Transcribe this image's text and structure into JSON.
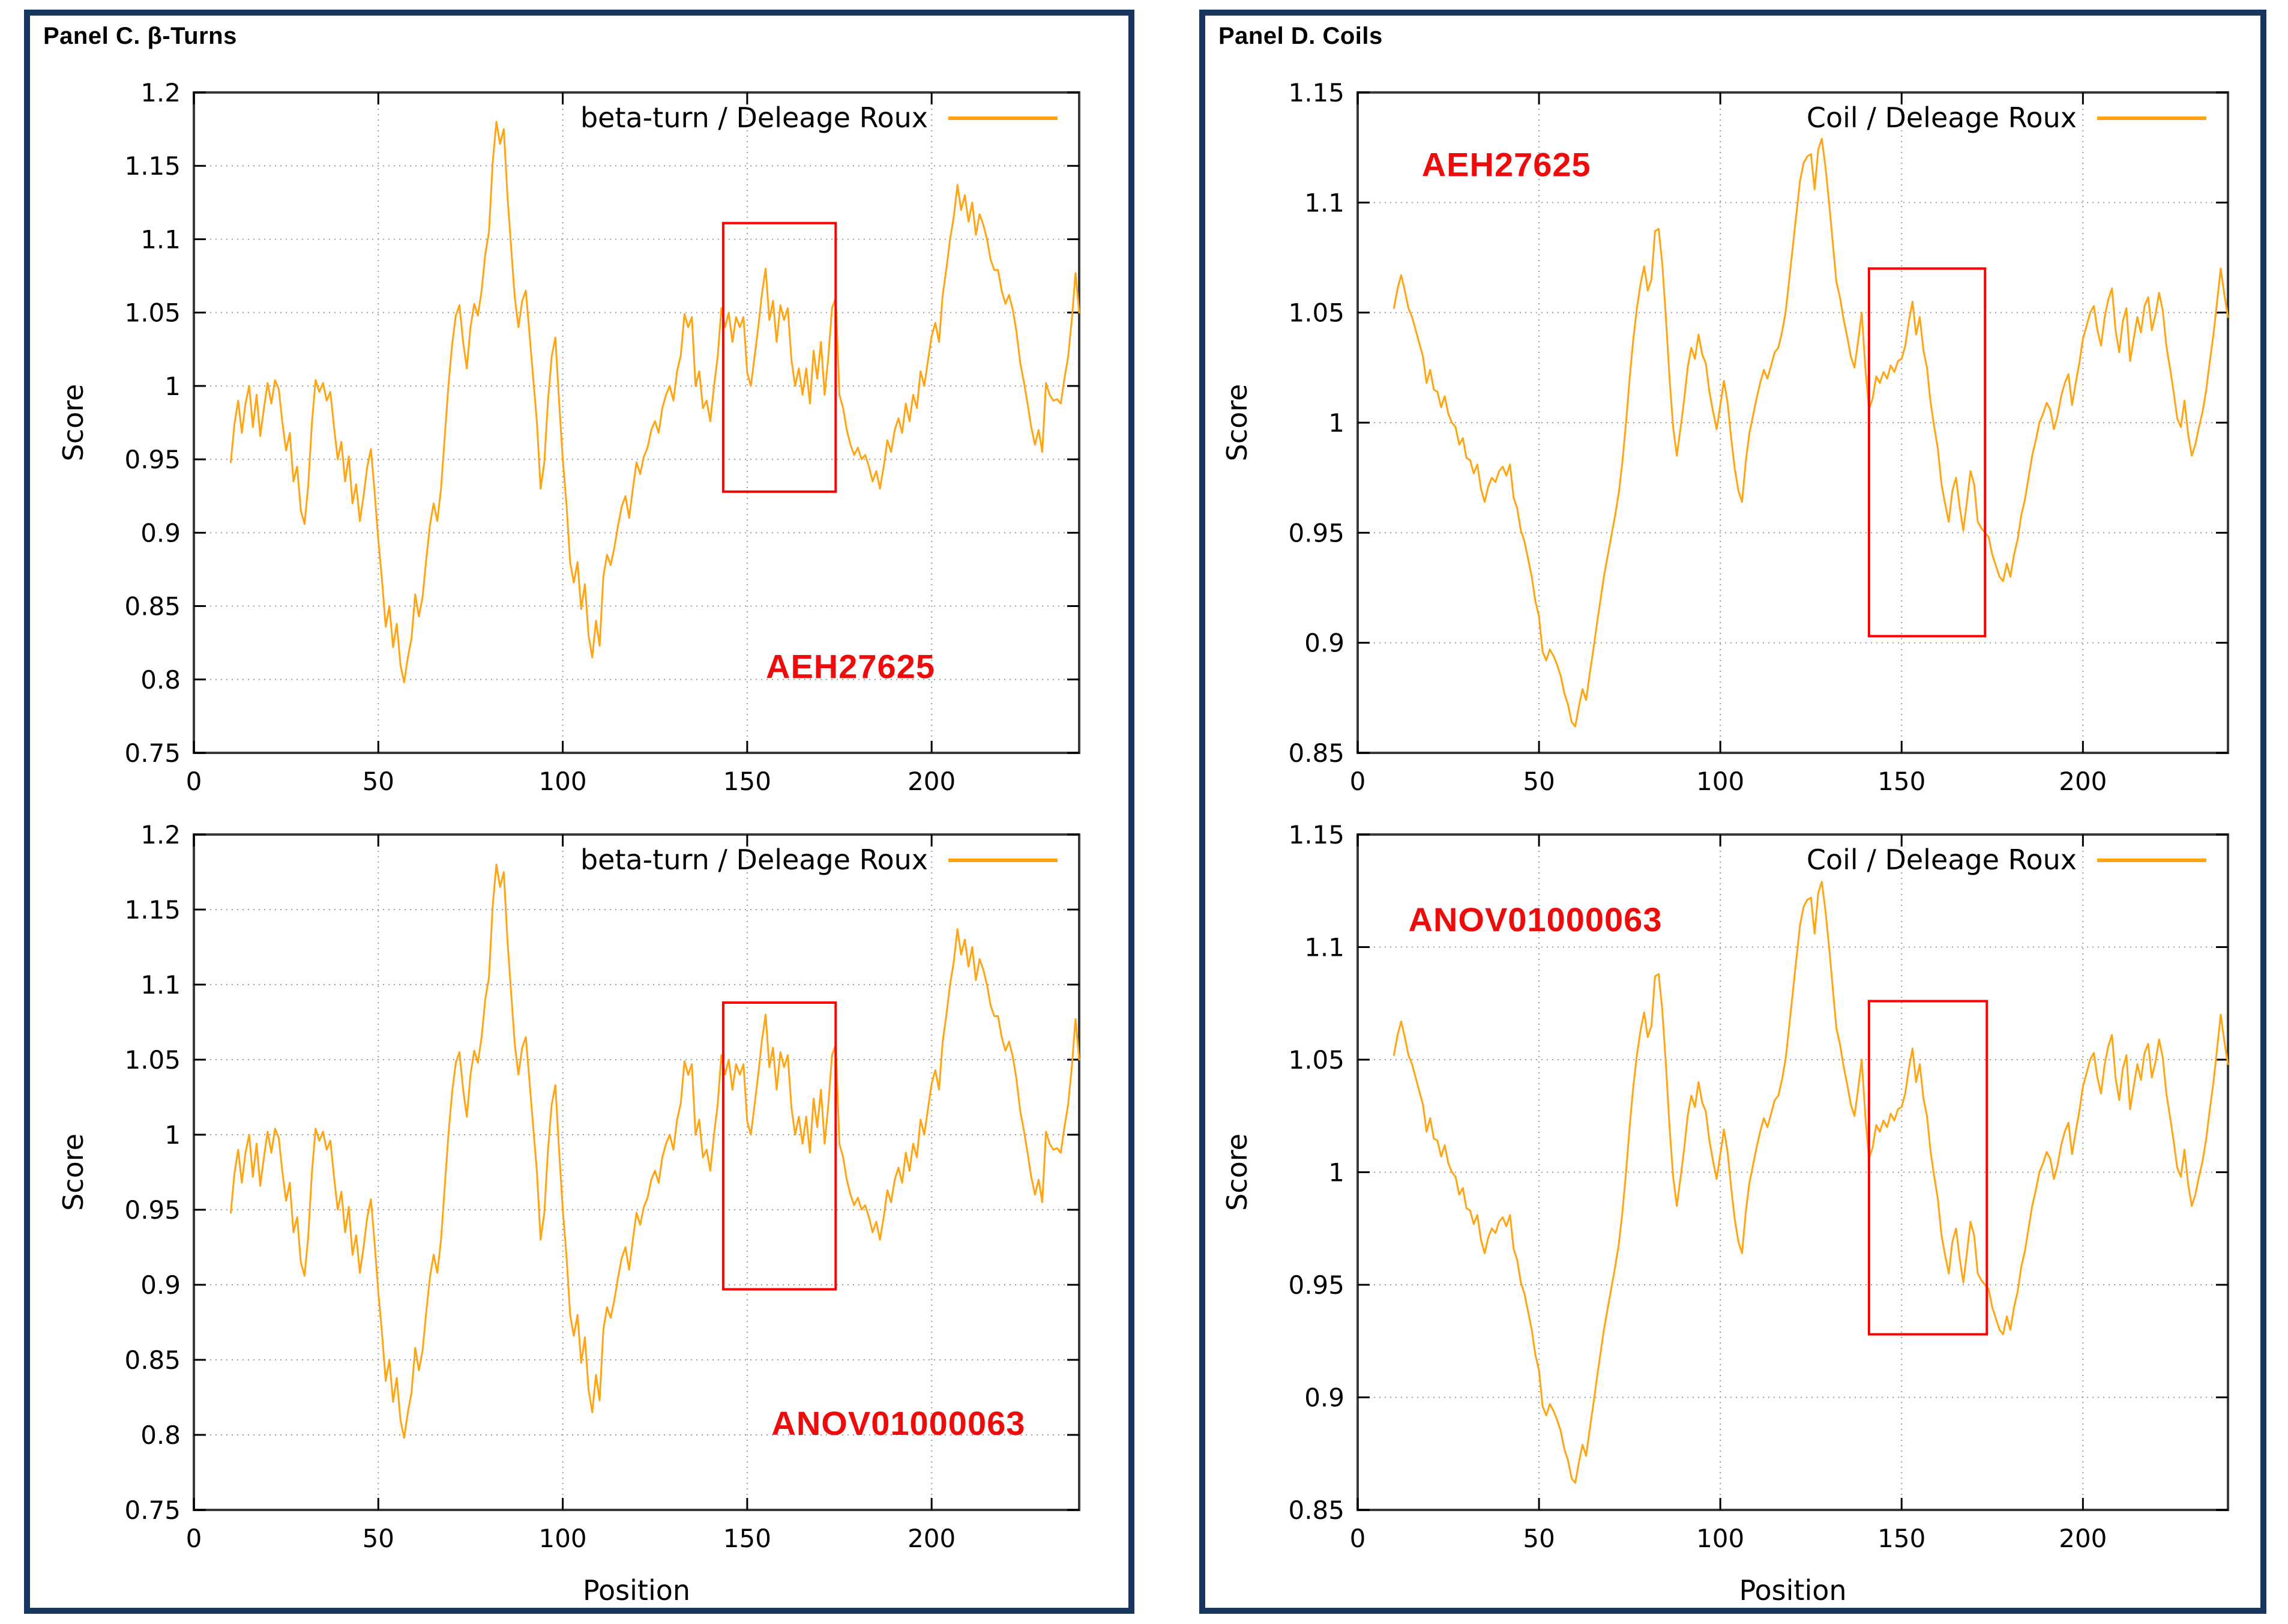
{
  "colors": {
    "series_line": "#ffa513",
    "highlight_red": "#ff0000",
    "annotation_red": "#ee0b0b",
    "panel_border": "#17365d",
    "grid": "#9c9c9c",
    "background": "#ffffff"
  },
  "chart_data": [
    {
      "type": "line",
      "panel_title": "Panel C. β-Turns",
      "legend": "beta-turn / Deleage  Roux",
      "xlabel": "Position",
      "ylabel": "Score",
      "xlim": [
        0,
        240
      ],
      "ylim": [
        0.75,
        1.2
      ],
      "xticks": [
        0,
        50,
        100,
        150,
        200
      ],
      "yticks": [
        0.75,
        0.8,
        0.85,
        0.9,
        0.95,
        1,
        1.05,
        1.1,
        1.15,
        1.2
      ],
      "grid": true,
      "legend_position": "top-right",
      "line_color": "#ffa513",
      "x": [
        10,
        11,
        12,
        13,
        14,
        15,
        16,
        17,
        18,
        19,
        20,
        21,
        22,
        23,
        24,
        25,
        26,
        27,
        28,
        29,
        30,
        31,
        32,
        33,
        34,
        35,
        36,
        37,
        38,
        39,
        40,
        41,
        42,
        43,
        44,
        45,
        46,
        47,
        48,
        49,
        50,
        51,
        52,
        53,
        54,
        55,
        56,
        57,
        58,
        59,
        60,
        61,
        62,
        63,
        64,
        65,
        66,
        67,
        68,
        69,
        70,
        71,
        72,
        73,
        74,
        75,
        76,
        77,
        78,
        79,
        80,
        81,
        82,
        83,
        84,
        85,
        86,
        87,
        88,
        89,
        90,
        91,
        92,
        93,
        94,
        95,
        96,
        97,
        98,
        99,
        100,
        101,
        102,
        103,
        104,
        105,
        106,
        107,
        108,
        109,
        110,
        111,
        112,
        113,
        114,
        115,
        116,
        117,
        118,
        119,
        120,
        121,
        122,
        123,
        124,
        125,
        126,
        127,
        128,
        129,
        130,
        131,
        132,
        133,
        134,
        135,
        136,
        137,
        138,
        139,
        140,
        141,
        142,
        143,
        144,
        145,
        146,
        147,
        148,
        149,
        150,
        151,
        152,
        153,
        154,
        155,
        156,
        157,
        158,
        159,
        160,
        161,
        162,
        163,
        164,
        165,
        166,
        167,
        168,
        169,
        170,
        171,
        172,
        173,
        174,
        175,
        176,
        177,
        178,
        179,
        180,
        181,
        182,
        183,
        184,
        185,
        186,
        187,
        188,
        189,
        190,
        191,
        192,
        193,
        194,
        195,
        196,
        197,
        198,
        199,
        200,
        201,
        202,
        203,
        204,
        205,
        206,
        207,
        208,
        209,
        210,
        211,
        212,
        213,
        214,
        215,
        216,
        217,
        218,
        219,
        220,
        221,
        222,
        223,
        224,
        225,
        226,
        227,
        228,
        229,
        230,
        231,
        232,
        233,
        234,
        235,
        236,
        237,
        238,
        239,
        240
      ],
      "y": [
        0.948,
        0.974,
        0.99,
        0.968,
        0.988,
        1.0,
        0.972,
        0.994,
        0.966,
        0.985,
        1.002,
        0.988,
        1.004,
        0.998,
        0.975,
        0.956,
        0.968,
        0.935,
        0.945,
        0.915,
        0.906,
        0.932,
        0.975,
        1.004,
        0.996,
        1.002,
        0.99,
        0.996,
        0.972,
        0.95,
        0.962,
        0.935,
        0.952,
        0.92,
        0.933,
        0.908,
        0.925,
        0.945,
        0.957,
        0.928,
        0.895,
        0.868,
        0.836,
        0.85,
        0.822,
        0.838,
        0.81,
        0.798,
        0.815,
        0.828,
        0.858,
        0.843,
        0.856,
        0.882,
        0.905,
        0.92,
        0.908,
        0.93,
        0.965,
        1.0,
        1.028,
        1.048,
        1.055,
        1.03,
        1.012,
        1.04,
        1.056,
        1.048,
        1.065,
        1.09,
        1.105,
        1.152,
        1.18,
        1.165,
        1.175,
        1.13,
        1.095,
        1.06,
        1.04,
        1.058,
        1.065,
        1.035,
        1.005,
        0.975,
        0.93,
        0.948,
        0.99,
        1.02,
        1.033,
        0.99,
        0.95,
        0.92,
        0.88,
        0.866,
        0.88,
        0.848,
        0.865,
        0.83,
        0.815,
        0.84,
        0.823,
        0.87,
        0.885,
        0.878,
        0.89,
        0.905,
        0.918,
        0.925,
        0.91,
        0.93,
        0.948,
        0.94,
        0.952,
        0.958,
        0.97,
        0.976,
        0.968,
        0.985,
        0.994,
        1.0,
        0.99,
        1.01,
        1.021,
        1.049,
        1.04,
        1.047,
        1.0,
        1.01,
        0.985,
        0.99,
        0.976,
        1.0,
        1.02,
        1.053,
        1.04,
        1.05,
        1.03,
        1.047,
        1.04,
        1.047,
        1.009,
        1.0,
        1.02,
        1.04,
        1.063,
        1.08,
        1.045,
        1.058,
        1.03,
        1.055,
        1.045,
        1.053,
        1.018,
        1.0,
        1.012,
        0.994,
        1.012,
        0.988,
        1.024,
        1.005,
        1.03,
        0.994,
        1.02,
        1.053,
        1.06,
        0.994,
        0.985,
        0.97,
        0.96,
        0.953,
        0.958,
        0.95,
        0.953,
        0.945,
        0.935,
        0.942,
        0.93,
        0.945,
        0.963,
        0.955,
        0.97,
        0.978,
        0.968,
        0.988,
        0.976,
        0.994,
        0.985,
        1.01,
        1.0,
        1.017,
        1.034,
        1.043,
        1.03,
        1.062,
        1.08,
        1.1,
        1.115,
        1.137,
        1.12,
        1.13,
        1.112,
        1.125,
        1.103,
        1.117,
        1.11,
        1.1,
        1.086,
        1.079,
        1.079,
        1.065,
        1.056,
        1.062,
        1.052,
        1.037,
        1.016,
        1.003,
        0.988,
        0.972,
        0.96,
        0.97,
        0.955,
        1.002,
        0.994,
        0.99,
        0.991,
        0.988,
        1.005,
        1.02,
        1.045,
        1.077,
        1.05
      ],
      "subplots": [
        {
          "annotation": "AEH27625",
          "annotation_xy": [
            178,
            0.801
          ],
          "highlight_box": [
            143.5,
            0.928,
            174,
            1.111
          ]
        },
        {
          "annotation": "ANOV01000063",
          "annotation_xy": [
            191,
            0.8
          ],
          "highlight_box": [
            143.5,
            0.897,
            174,
            1.088
          ]
        }
      ]
    },
    {
      "type": "line",
      "panel_title": "Panel D. Coils",
      "legend": "Coil / Deleage  Roux",
      "xlabel": "Position",
      "ylabel": "Score",
      "xlim": [
        0,
        240
      ],
      "ylim": [
        0.85,
        1.15
      ],
      "xticks": [
        0,
        50,
        100,
        150,
        200
      ],
      "yticks": [
        0.85,
        0.9,
        0.95,
        1,
        1.05,
        1.1,
        1.15
      ],
      "grid": true,
      "legend_position": "top-right",
      "line_color": "#ffa513",
      "x": [
        10,
        11,
        12,
        13,
        14,
        15,
        16,
        17,
        18,
        19,
        20,
        21,
        22,
        23,
        24,
        25,
        26,
        27,
        28,
        29,
        30,
        31,
        32,
        33,
        34,
        35,
        36,
        37,
        38,
        39,
        40,
        41,
        42,
        43,
        44,
        45,
        46,
        47,
        48,
        49,
        50,
        51,
        52,
        53,
        54,
        55,
        56,
        57,
        58,
        59,
        60,
        61,
        62,
        63,
        64,
        65,
        66,
        67,
        68,
        69,
        70,
        71,
        72,
        73,
        74,
        75,
        76,
        77,
        78,
        79,
        80,
        81,
        82,
        83,
        84,
        85,
        86,
        87,
        88,
        89,
        90,
        91,
        92,
        93,
        94,
        95,
        96,
        97,
        98,
        99,
        100,
        101,
        102,
        103,
        104,
        105,
        106,
        107,
        108,
        109,
        110,
        111,
        112,
        113,
        114,
        115,
        116,
        117,
        118,
        119,
        120,
        121,
        122,
        123,
        124,
        125,
        126,
        127,
        128,
        129,
        130,
        131,
        132,
        133,
        134,
        135,
        136,
        137,
        138,
        139,
        140,
        141,
        142,
        143,
        144,
        145,
        146,
        147,
        148,
        149,
        150,
        151,
        152,
        153,
        154,
        155,
        156,
        157,
        158,
        159,
        160,
        161,
        162,
        163,
        164,
        165,
        166,
        167,
        168,
        169,
        170,
        171,
        172,
        173,
        174,
        175,
        176,
        177,
        178,
        179,
        180,
        181,
        182,
        183,
        184,
        185,
        186,
        187,
        188,
        189,
        190,
        191,
        192,
        193,
        194,
        195,
        196,
        197,
        198,
        199,
        200,
        201,
        202,
        203,
        204,
        205,
        206,
        207,
        208,
        209,
        210,
        211,
        212,
        213,
        214,
        215,
        216,
        217,
        218,
        219,
        220,
        221,
        222,
        223,
        224,
        225,
        226,
        227,
        228,
        229,
        230,
        231,
        232,
        233,
        234,
        235,
        236,
        237,
        238,
        239,
        240
      ],
      "y": [
        1.052,
        1.061,
        1.067,
        1.06,
        1.052,
        1.048,
        1.042,
        1.036,
        1.03,
        1.018,
        1.024,
        1.015,
        1.014,
        1.007,
        1.012,
        1.004,
        1.0,
        0.998,
        0.99,
        0.993,
        0.984,
        0.983,
        0.977,
        0.981,
        0.97,
        0.964,
        0.971,
        0.975,
        0.973,
        0.978,
        0.98,
        0.976,
        0.981,
        0.966,
        0.961,
        0.951,
        0.946,
        0.938,
        0.93,
        0.919,
        0.912,
        0.896,
        0.892,
        0.897,
        0.894,
        0.89,
        0.885,
        0.877,
        0.872,
        0.864,
        0.862,
        0.871,
        0.879,
        0.874,
        0.886,
        0.897,
        0.909,
        0.92,
        0.931,
        0.94,
        0.949,
        0.958,
        0.968,
        0.982,
        1.0,
        1.02,
        1.038,
        1.052,
        1.063,
        1.071,
        1.06,
        1.065,
        1.087,
        1.088,
        1.072,
        1.048,
        1.02,
        0.998,
        0.985,
        0.997,
        1.01,
        1.025,
        1.034,
        1.029,
        1.04,
        1.031,
        1.027,
        1.014,
        1.005,
        0.997,
        1.008,
        1.019,
        1.009,
        0.993,
        0.979,
        0.969,
        0.964,
        0.982,
        0.995,
        1.003,
        1.011,
        1.018,
        1.024,
        1.02,
        1.026,
        1.032,
        1.034,
        1.041,
        1.05,
        1.065,
        1.08,
        1.095,
        1.11,
        1.118,
        1.121,
        1.122,
        1.106,
        1.124,
        1.129,
        1.116,
        1.1,
        1.082,
        1.064,
        1.057,
        1.047,
        1.039,
        1.03,
        1.025,
        1.037,
        1.05,
        1.025,
        1.006,
        1.011,
        1.021,
        1.018,
        1.023,
        1.02,
        1.026,
        1.023,
        1.028,
        1.029,
        1.035,
        1.046,
        1.055,
        1.04,
        1.048,
        1.033,
        1.025,
        1.009,
        0.998,
        0.988,
        0.972,
        0.963,
        0.955,
        0.969,
        0.975,
        0.962,
        0.951,
        0.964,
        0.978,
        0.972,
        0.955,
        0.952,
        0.95,
        0.948,
        0.94,
        0.935,
        0.93,
        0.928,
        0.936,
        0.93,
        0.94,
        0.947,
        0.958,
        0.965,
        0.975,
        0.985,
        0.992,
        1.0,
        1.004,
        1.009,
        1.006,
        0.997,
        1.003,
        1.012,
        1.018,
        1.022,
        1.008,
        1.018,
        1.027,
        1.038,
        1.044,
        1.05,
        1.053,
        1.042,
        1.035,
        1.048,
        1.056,
        1.061,
        1.042,
        1.032,
        1.046,
        1.052,
        1.028,
        1.038,
        1.048,
        1.041,
        1.053,
        1.057,
        1.042,
        1.049,
        1.059,
        1.051,
        1.035,
        1.025,
        1.014,
        1.002,
        0.998,
        1.01,
        0.995,
        0.985,
        0.99,
        0.998,
        1.005,
        1.015,
        1.028,
        1.04,
        1.055,
        1.07,
        1.058,
        1.048
      ],
      "subplots": [
        {
          "annotation": "AEH27625",
          "annotation_xy": [
            41,
            1.112
          ],
          "highlight_box": [
            141,
            0.903,
            173,
            1.07
          ]
        },
        {
          "annotation": "ANOV01000063",
          "annotation_xy": [
            49,
            1.107
          ],
          "highlight_box": [
            141,
            0.928,
            173.5,
            1.076
          ]
        }
      ]
    }
  ]
}
